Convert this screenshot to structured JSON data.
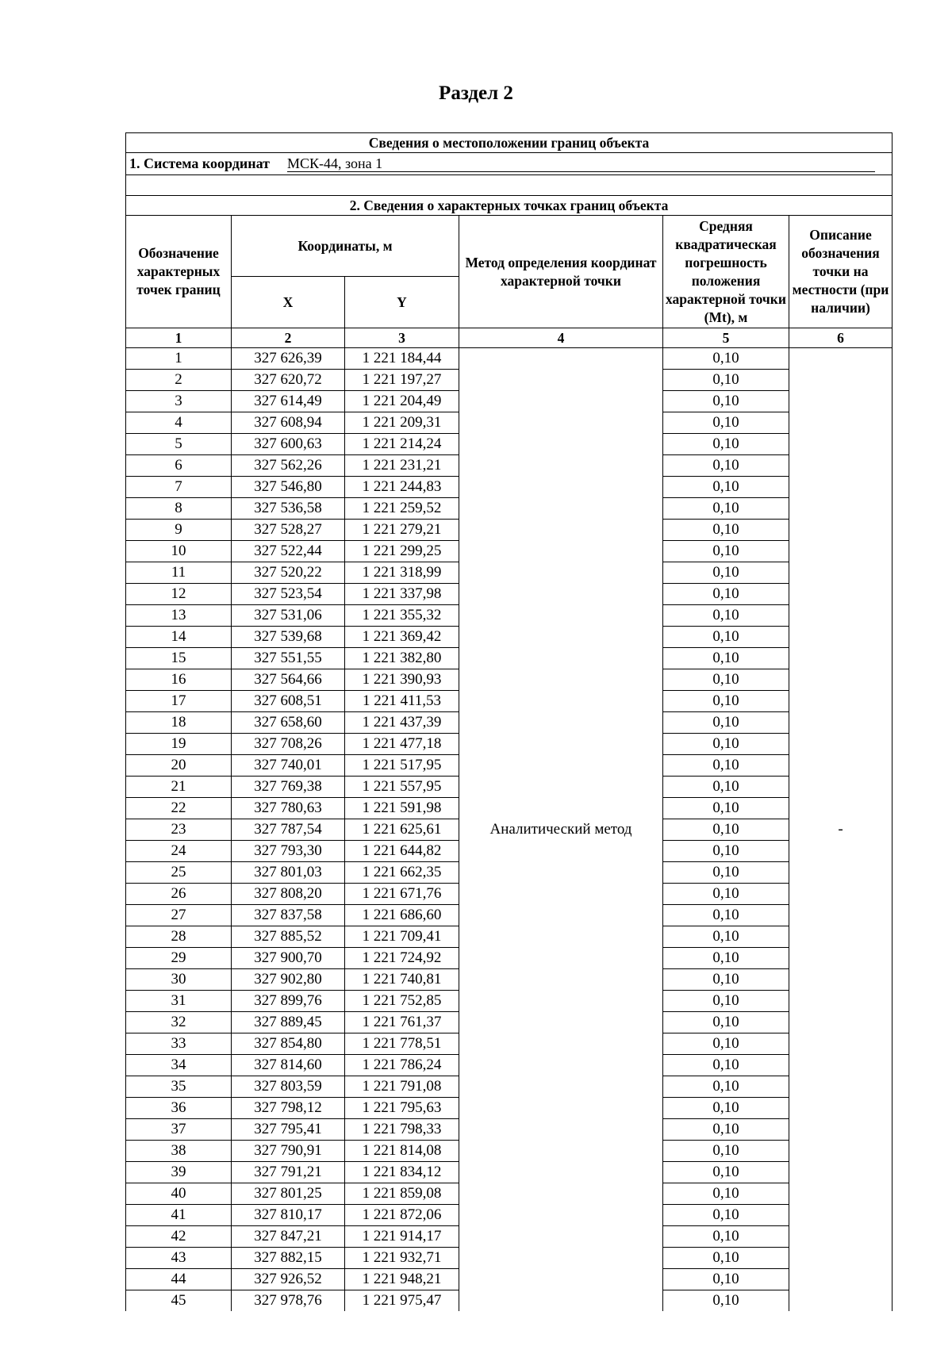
{
  "page_title": "Раздел 2",
  "table": {
    "title": "Сведения о местоположении границ объекта",
    "coord_system_label": "1. Система координат",
    "coord_system_value": "МСК-44, зона 1",
    "section2_title": "2. Сведения о характерных точках границ объекта",
    "headers": {
      "point": "Обозначение характерных точек границ",
      "coords": "Координаты, м",
      "x": "X",
      "y": "Y",
      "method": "Метод определения координат характерной точки",
      "error": "Средняя квадратическая погрешность положения характерной точки (Mt), м",
      "description": "Описание обозначения точки на местности (при наличии)"
    },
    "column_numbers": [
      "1",
      "2",
      "3",
      "4",
      "5",
      "6"
    ],
    "method_value": "Аналитический метод",
    "description_value": "-",
    "rows": [
      [
        "1",
        "327 626,39",
        "1 221 184,44",
        "0,10"
      ],
      [
        "2",
        "327 620,72",
        "1 221 197,27",
        "0,10"
      ],
      [
        "3",
        "327 614,49",
        "1 221 204,49",
        "0,10"
      ],
      [
        "4",
        "327 608,94",
        "1 221 209,31",
        "0,10"
      ],
      [
        "5",
        "327 600,63",
        "1 221 214,24",
        "0,10"
      ],
      [
        "6",
        "327 562,26",
        "1 221 231,21",
        "0,10"
      ],
      [
        "7",
        "327 546,80",
        "1 221 244,83",
        "0,10"
      ],
      [
        "8",
        "327 536,58",
        "1 221 259,52",
        "0,10"
      ],
      [
        "9",
        "327 528,27",
        "1 221 279,21",
        "0,10"
      ],
      [
        "10",
        "327 522,44",
        "1 221 299,25",
        "0,10"
      ],
      [
        "11",
        "327 520,22",
        "1 221 318,99",
        "0,10"
      ],
      [
        "12",
        "327 523,54",
        "1 221 337,98",
        "0,10"
      ],
      [
        "13",
        "327 531,06",
        "1 221 355,32",
        "0,10"
      ],
      [
        "14",
        "327 539,68",
        "1 221 369,42",
        "0,10"
      ],
      [
        "15",
        "327 551,55",
        "1 221 382,80",
        "0,10"
      ],
      [
        "16",
        "327 564,66",
        "1 221 390,93",
        "0,10"
      ],
      [
        "17",
        "327 608,51",
        "1 221 411,53",
        "0,10"
      ],
      [
        "18",
        "327 658,60",
        "1 221 437,39",
        "0,10"
      ],
      [
        "19",
        "327 708,26",
        "1 221 477,18",
        "0,10"
      ],
      [
        "20",
        "327 740,01",
        "1 221 517,95",
        "0,10"
      ],
      [
        "21",
        "327 769,38",
        "1 221 557,95",
        "0,10"
      ],
      [
        "22",
        "327 780,63",
        "1 221 591,98",
        "0,10"
      ],
      [
        "23",
        "327 787,54",
        "1 221 625,61",
        "0,10"
      ],
      [
        "24",
        "327 793,30",
        "1 221 644,82",
        "0,10"
      ],
      [
        "25",
        "327 801,03",
        "1 221 662,35",
        "0,10"
      ],
      [
        "26",
        "327 808,20",
        "1 221 671,76",
        "0,10"
      ],
      [
        "27",
        "327 837,58",
        "1 221 686,60",
        "0,10"
      ],
      [
        "28",
        "327 885,52",
        "1 221 709,41",
        "0,10"
      ],
      [
        "29",
        "327 900,70",
        "1 221 724,92",
        "0,10"
      ],
      [
        "30",
        "327 902,80",
        "1 221 740,81",
        "0,10"
      ],
      [
        "31",
        "327 899,76",
        "1 221 752,85",
        "0,10"
      ],
      [
        "32",
        "327 889,45",
        "1 221 761,37",
        "0,10"
      ],
      [
        "33",
        "327 854,80",
        "1 221 778,51",
        "0,10"
      ],
      [
        "34",
        "327 814,60",
        "1 221 786,24",
        "0,10"
      ],
      [
        "35",
        "327 803,59",
        "1 221 791,08",
        "0,10"
      ],
      [
        "36",
        "327 798,12",
        "1 221 795,63",
        "0,10"
      ],
      [
        "37",
        "327 795,41",
        "1 221 798,33",
        "0,10"
      ],
      [
        "38",
        "327 790,91",
        "1 221 814,08",
        "0,10"
      ],
      [
        "39",
        "327 791,21",
        "1 221 834,12",
        "0,10"
      ],
      [
        "40",
        "327 801,25",
        "1 221 859,08",
        "0,10"
      ],
      [
        "41",
        "327 810,17",
        "1 221 872,06",
        "0,10"
      ],
      [
        "42",
        "327 847,21",
        "1 221 914,17",
        "0,10"
      ],
      [
        "43",
        "327 882,15",
        "1 221 932,71",
        "0,10"
      ],
      [
        "44",
        "327 926,52",
        "1 221 948,21",
        "0,10"
      ],
      [
        "45",
        "327 978,76",
        "1 221 975,47",
        "0,10"
      ]
    ]
  }
}
